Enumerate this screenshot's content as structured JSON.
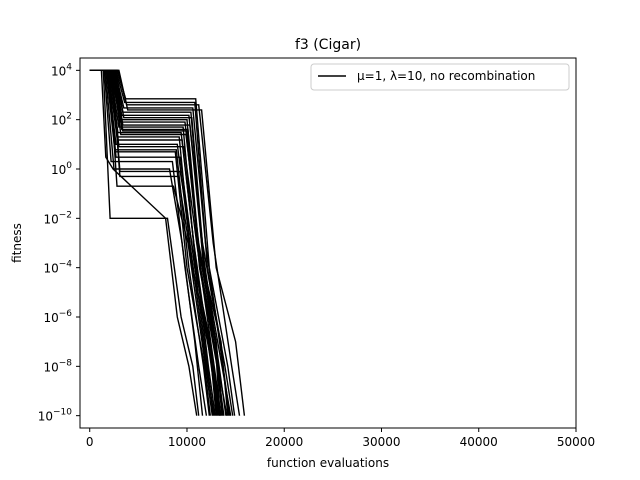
{
  "chart_data": {
    "type": "line",
    "title": "f3 (Cigar)",
    "xlabel": "function evaluations",
    "ylabel": "fitness",
    "xlim": [
      -1000,
      50000
    ],
    "ylim_log10": [
      -10.5,
      4.5
    ],
    "yscale": "log",
    "x_ticks": [
      0,
      10000,
      20000,
      30000,
      40000,
      50000
    ],
    "x_tick_labels": [
      "0",
      "10000",
      "20000",
      "30000",
      "40000",
      "50000"
    ],
    "y_ticks_log10": [
      4,
      2,
      0,
      -2,
      -4,
      -6,
      -8,
      -10
    ],
    "y_tick_mantissa": "10",
    "y_tick_exponents": [
      "4",
      "2",
      "0",
      "−2",
      "−4",
      "−6",
      "−8",
      "−10"
    ],
    "grid": false,
    "legend_position": "top-right",
    "line_color": "#000000",
    "series": [
      {
        "name": "μ=1, λ=10, no recombination",
        "x": [
          0,
          600,
          1200,
          1650,
          2400,
          7800,
          9000,
          10200,
          11400,
          12600,
          13600
        ],
        "y": [
          10000,
          10000,
          10000,
          10000,
          10000,
          0.01,
          1e-06,
          1e-08,
          1e-10,
          1e-10,
          1e-10
        ]
      }
    ],
    "runs": [
      {
        "x": [
          0,
          1200,
          1650,
          2400,
          7800,
          9000,
          10200,
          11000
        ],
        "y": [
          10000,
          10000,
          3,
          1,
          0.01,
          1e-06,
          1e-08,
          1e-10
        ]
      },
      {
        "x": [
          0,
          1400,
          2100,
          8000,
          9400,
          10600,
          11200
        ],
        "y": [
          10000,
          10000,
          0.01,
          0.01,
          1e-06,
          1e-08,
          1e-10
        ]
      },
      {
        "x": [
          0,
          1500,
          2200,
          8500,
          9800,
          11200,
          12000
        ],
        "y": [
          10000,
          10000,
          2,
          2,
          0.0001,
          1e-08,
          1e-10
        ]
      },
      {
        "x": [
          0,
          1600,
          2500,
          8200,
          9500,
          10800,
          11600
        ],
        "y": [
          10000,
          10000,
          1,
          1,
          0.001,
          1e-07,
          1e-10
        ]
      },
      {
        "x": [
          0,
          1700,
          2600,
          8800,
          10000,
          11800,
          12400
        ],
        "y": [
          10000,
          10000,
          5,
          5,
          0.0001,
          1e-08,
          1e-10
        ]
      },
      {
        "x": [
          0,
          1800,
          2700,
          9000,
          10300,
          12000,
          12800
        ],
        "y": [
          10000,
          10000,
          10,
          10,
          0.001,
          1e-08,
          1e-10
        ]
      },
      {
        "x": [
          0,
          1900,
          2800,
          9200,
          10500,
          12300,
          13000
        ],
        "y": [
          10000,
          10000,
          20,
          20,
          0.0001,
          1e-07,
          1e-10
        ]
      },
      {
        "x": [
          0,
          2000,
          2900,
          9400,
          10700,
          12500,
          13200
        ],
        "y": [
          10000,
          10000,
          30,
          30,
          0.001,
          1e-08,
          1e-10
        ]
      },
      {
        "x": [
          0,
          2100,
          3000,
          9600,
          10900,
          12700,
          13400
        ],
        "y": [
          10000,
          10000,
          50,
          50,
          0.0001,
          1e-08,
          1e-10
        ]
      },
      {
        "x": [
          0,
          2200,
          3100,
          9800,
          11100,
          12900,
          13600
        ],
        "y": [
          10000,
          10000,
          80,
          80,
          0.001,
          1e-07,
          1e-10
        ]
      },
      {
        "x": [
          0,
          2300,
          3200,
          10000,
          11300,
          13100,
          13800
        ],
        "y": [
          10000,
          10000,
          100,
          100,
          0.0001,
          1e-08,
          1e-10
        ]
      },
      {
        "x": [
          0,
          2400,
          3300,
          10200,
          11500,
          13300,
          14000
        ],
        "y": [
          10000,
          10000,
          150,
          150,
          0.001,
          1e-08,
          1e-10
        ]
      },
      {
        "x": [
          0,
          2500,
          3400,
          10400,
          11700,
          13500,
          14200
        ],
        "y": [
          10000,
          10000,
          200,
          200,
          0.0001,
          1e-07,
          1e-10
        ]
      },
      {
        "x": [
          0,
          2600,
          3500,
          10600,
          11900,
          13700,
          14400
        ],
        "y": [
          10000,
          10000,
          300,
          300,
          0.001,
          1e-08,
          1e-10
        ]
      },
      {
        "x": [
          0,
          2700,
          3600,
          10800,
          12100,
          13900,
          14700
        ],
        "y": [
          10000,
          10000,
          500,
          500,
          0.0001,
          1e-08,
          1e-10
        ]
      },
      {
        "x": [
          0,
          2300,
          3100,
          9100,
          10600,
          12600,
          13300
        ],
        "y": [
          10000,
          10000,
          0.5,
          0.5,
          0.0001,
          1e-08,
          1e-10
        ]
      },
      {
        "x": [
          0,
          2000,
          2800,
          8600,
          10100,
          11900,
          12600
        ],
        "y": [
          10000,
          10000,
          0.2,
          0.2,
          0.001,
          1e-08,
          1e-10
        ]
      },
      {
        "x": [
          0,
          1900,
          2700,
          9300,
          10800,
          12400,
          13100
        ],
        "y": [
          10000,
          10000,
          3,
          3,
          0.0001,
          1e-07,
          1e-10
        ]
      },
      {
        "x": [
          0,
          2200,
          3000,
          9700,
          11000,
          12800,
          13500
        ],
        "y": [
          10000,
          10000,
          8,
          8,
          0.001,
          1e-08,
          1e-10
        ]
      },
      {
        "x": [
          0,
          2500,
          3300,
          10100,
          11400,
          13200,
          14100
        ],
        "y": [
          10000,
          10000,
          40,
          40,
          0.0001,
          1e-08,
          1e-10
        ]
      },
      {
        "x": [
          0,
          2600,
          3400,
          10300,
          11600,
          13400,
          14300
        ],
        "y": [
          10000,
          10000,
          60,
          60,
          0.001,
          1e-07,
          1e-10
        ]
      },
      {
        "x": [
          0,
          2800,
          3700,
          10900,
          12300,
          14200,
          14900
        ],
        "y": [
          10000,
          10000,
          700,
          700,
          0.0001,
          1e-08,
          1e-10
        ]
      },
      {
        "x": [
          0,
          2900,
          3800,
          11200,
          12700,
          14600,
          15400
        ],
        "y": [
          10000,
          10000,
          400,
          400,
          0.001,
          1e-08,
          1e-10
        ]
      },
      {
        "x": [
          0,
          3000,
          3900,
          11500,
          13000,
          15000,
          15900
        ],
        "y": [
          10000,
          10000,
          250,
          250,
          0.0001,
          1e-07,
          1e-10
        ]
      },
      {
        "x": [
          0,
          2100,
          2900,
          9500,
          10700,
          12200,
          12900
        ],
        "y": [
          10000,
          10000,
          15,
          15,
          0.001,
          1e-08,
          1e-10
        ]
      },
      {
        "x": [
          0,
          1800,
          2600,
          8900,
          10200,
          11700,
          12300
        ],
        "y": [
          10000,
          10000,
          6,
          6,
          0.0001,
          1e-08,
          1e-10
        ]
      },
      {
        "x": [
          0,
          2400,
          3200,
          9900,
          11200,
          13000,
          13700
        ],
        "y": [
          10000,
          10000,
          25,
          25,
          0.001,
          1e-07,
          1e-10
        ]
      },
      {
        "x": [
          0,
          2700,
          3500,
          10500,
          11800,
          13600,
          14500
        ],
        "y": [
          10000,
          10000,
          120,
          120,
          0.0001,
          1e-08,
          1e-10
        ]
      },
      {
        "x": [
          0,
          2300,
          3100,
          9300,
          10500,
          12100,
          12700
        ],
        "y": [
          10000,
          10000,
          0.8,
          0.8,
          0.001,
          1e-08,
          1e-10
        ]
      },
      {
        "x": [
          0,
          2600,
          3400,
          10000,
          11300,
          12900,
          13400
        ],
        "y": [
          10000,
          10000,
          35,
          35,
          0.0001,
          1e-07,
          1e-10
        ]
      }
    ]
  }
}
